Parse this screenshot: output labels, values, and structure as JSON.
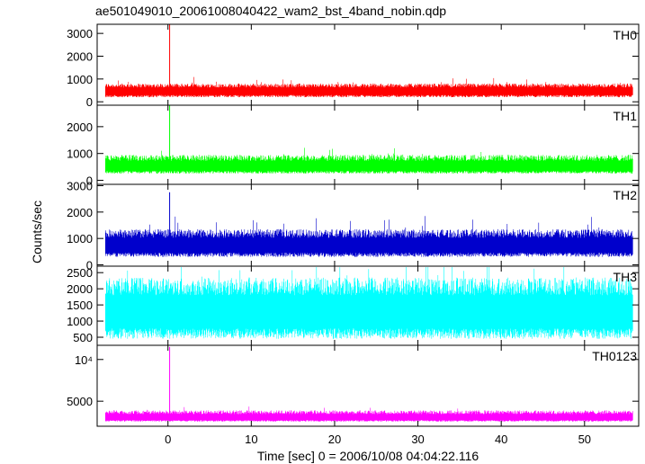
{
  "title": "ae501049010_20061008040422_wam2_bst_4band_nobin.qdp",
  "chart_data": {
    "type": "line",
    "xlabel": "Time [sec] 0 = 2006/10/08 04:04:22.116",
    "ylabel": "Counts/sec",
    "xlim": [
      -8.5,
      56.5
    ],
    "xticks": [
      0,
      10,
      20,
      30,
      40,
      50
    ],
    "grid": false,
    "panels": [
      {
        "name": "TH0",
        "color": "#ff0000",
        "ylim": [
          -150,
          3400
        ],
        "yticks": [
          0,
          1000,
          2000,
          3000
        ],
        "baseline": 450,
        "noise_low": 250,
        "noise_high": 350,
        "spike": {
          "x": 0.2,
          "value": 3400
        }
      },
      {
        "name": "TH1",
        "color": "#00ff00",
        "ylim": [
          -150,
          2800
        ],
        "yticks": [
          0,
          1000,
          2000
        ],
        "baseline": 500,
        "noise_low": 250,
        "noise_high": 450,
        "spike": {
          "x": 0.2,
          "value": 2800
        }
      },
      {
        "name": "TH2",
        "color": "#0000cc",
        "ylim": [
          -50,
          3050
        ],
        "yticks": [
          0,
          1000,
          2000,
          3000
        ],
        "baseline": 700,
        "noise_low": 400,
        "noise_high": 650,
        "spike": {
          "x": 0.2,
          "value": 2750
        }
      },
      {
        "name": "TH3",
        "color": "#00ffff",
        "ylim": [
          250,
          2700
        ],
        "yticks": [
          500,
          1000,
          1500,
          2000,
          2500
        ],
        "baseline": 1250,
        "noise_low": 800,
        "noise_high": 1100,
        "spike": null
      },
      {
        "name": "TH0123",
        "color": "#ff00ff",
        "ylim": [
          2000,
          11700
        ],
        "yticks": [
          5000,
          10000
        ],
        "ytick_labels": [
          "5000",
          "10⁴"
        ],
        "baseline": 3000,
        "noise_low": 450,
        "noise_high": 900,
        "spike": {
          "x": 0.2,
          "value": 11500
        }
      }
    ]
  }
}
